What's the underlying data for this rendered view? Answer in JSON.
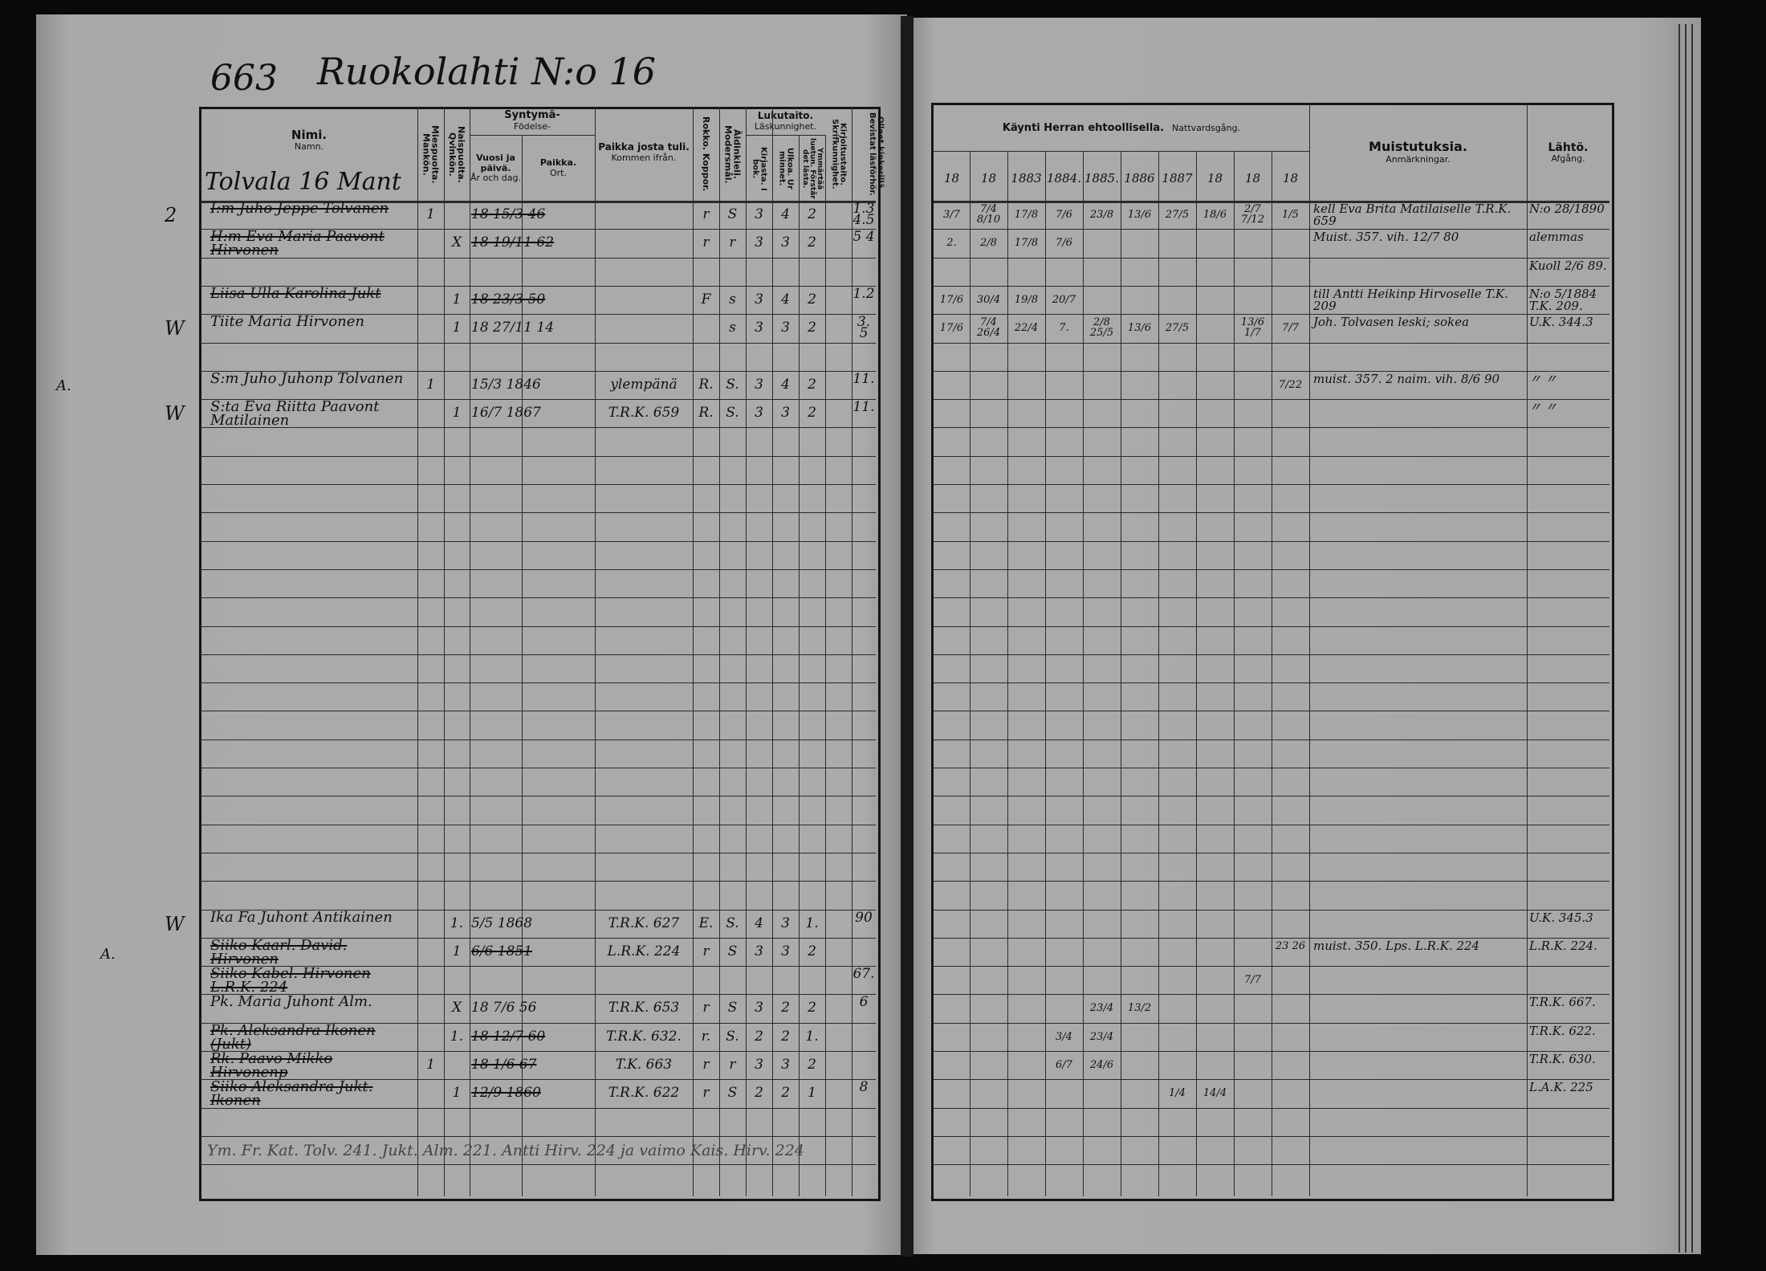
{
  "header": {
    "page_number": "663",
    "title": "Ruokolahti N:o 16",
    "household": "Tolvala 16 Mant"
  },
  "left_headers": {
    "name": "Nimi.",
    "name_sv": "Namn.",
    "male": "Miespuolta. Mankön.",
    "female": "Naispuolta. Qvinkön.",
    "birth_group": "Syntymä-",
    "birth_group_sv": "Födelse-",
    "birth": "Vuosi ja päivä.",
    "birth_sv": "År och dag.",
    "place": "Paikka.",
    "place_sv": "Ort.",
    "from": "Paikka josta tuli.",
    "from_sv": "Kommen ifrån.",
    "rokko": "Rokko. Koppor.",
    "language": "Äidinkieli. Modersmål.",
    "literacy_group": "Lukutaito.",
    "literacy_group_sv": "Läskunnighet.",
    "book": "Kirjasta. I bok.",
    "memory": "Ulkoa. Ur minnet.",
    "understand": "Ymmärtää luetun. Förstår det lästa.",
    "writing": "Kirjoitustaito. Skrifkunnighet.",
    "other": "Olleet kinkerillä. Bevistat läsförhör."
  },
  "right_headers": {
    "communion_group": "Käynti Herran ehtoollisella.",
    "communion_group_sv": "Nattvardsgång.",
    "years": [
      "18",
      "18",
      "1883",
      "1884.",
      "1885.",
      "1886",
      "1887",
      "18",
      "18",
      "18"
    ],
    "notes": "Muistutuksia.",
    "notes_sv": "Anmärkningar.",
    "departure": "Lähtö.",
    "departure_sv": "Afgång."
  },
  "rows": [
    {
      "margin": "2",
      "name": "I:m Juho Jeppe Tolvanen",
      "male": "1",
      "female": "",
      "birth": "18 15/3 46",
      "from": "",
      "rokko": "r",
      "language": "S",
      "book": "3",
      "memory": "4",
      "understand": "2",
      "writing": "",
      "other": "1.3 4.5",
      "communion": [
        "3/7",
        "7/4 8/10",
        "17/8",
        "7/6",
        "23/8",
        "13/6",
        "27/5",
        "18/6",
        "2/7 7/12",
        "1/5"
      ],
      "notes": "kell Eva Brita Matilaiselle T.R.K. 659",
      "departure": "N:o 28/1890",
      "struck": true
    },
    {
      "margin": "",
      "name": "H:m Eva Maria Paavont Hirvonen",
      "male": "",
      "female": "X",
      "birth": "18 19/11 62",
      "from": "",
      "rokko": "r",
      "language": "r",
      "book": "3",
      "memory": "3",
      "understand": "2",
      "writing": "",
      "other": "5 4",
      "communion": [
        "2.",
        "2/8",
        "17/8",
        "7/6",
        "",
        "",
        "",
        "",
        "",
        ""
      ],
      "notes": "Muist. 357. vih. 12/7 80",
      "departure": "alemmas",
      "struck": true
    },
    {
      "margin": "",
      "name": "",
      "male": "",
      "female": "",
      "birth": "",
      "from": "",
      "rokko": "",
      "language": "",
      "book": "",
      "memory": "",
      "understand": "",
      "writing": "",
      "other": "",
      "communion": [
        "",
        "",
        "",
        "",
        "",
        "",
        "",
        "",
        "",
        ""
      ],
      "notes": "",
      "departure": "Kuoll 2/6 89.",
      "struck": false
    },
    {
      "margin": "",
      "name": "Liisa Ulla Karolina Jukt",
      "male": "",
      "female": "1",
      "birth": "18 23/3 50",
      "from": "",
      "rokko": "F",
      "language": "s",
      "book": "3",
      "memory": "4",
      "understand": "2",
      "writing": "",
      "other": "1.2",
      "communion": [
        "17/6",
        "30/4",
        "19/8",
        "20/7",
        "",
        "",
        "",
        "",
        "",
        ""
      ],
      "notes": "till Antti Heikinp Hirvoselle T.K. 209",
      "departure": "N:o 5/1884 T.K. 209.",
      "struck": true
    },
    {
      "margin": "W",
      "name": "Tiite Maria Hirvonen",
      "male": "",
      "female": "1",
      "birth": "18 27/11 14",
      "from": "",
      "rokko": "",
      "language": "s",
      "book": "3",
      "memory": "3",
      "understand": "2",
      "writing": "",
      "other": "3. 5",
      "communion": [
        "17/6",
        "7/4 26/4",
        "22/4",
        "7.",
        "2/8 25/5",
        "13/6",
        "27/5",
        "",
        "13/6 1/7",
        "7/7"
      ],
      "notes": "Joh. Tolvasen leski; sokea",
      "departure": "U.K. 344.3",
      "struck": false
    },
    {
      "margin": "",
      "name": "S:m Juho Juhonp Tolvanen",
      "male": "1",
      "female": "",
      "birth": "15/3 1846",
      "from": "ylempänä",
      "rokko": "R.",
      "language": "S.",
      "book": "3",
      "memory": "4",
      "understand": "2",
      "writing": "",
      "other": "11.",
      "communion": [
        "",
        "",
        "",
        "",
        "",
        "",
        "",
        "",
        "",
        "7/22"
      ],
      "notes": "muist. 357. 2 naim. vih. 8/6 90",
      "departure": "〃  〃",
      "struck": false
    },
    {
      "margin": "W",
      "name": "S:ta Eva Riitta Paavont Matilainen",
      "male": "",
      "female": "1",
      "birth": "16/7 1867",
      "from": "T.R.K. 659",
      "rokko": "R.",
      "language": "S.",
      "book": "3",
      "memory": "3",
      "understand": "2",
      "writing": "",
      "other": "11.",
      "communion": [
        "",
        "",
        "",
        "",
        "",
        "",
        "",
        "",
        "",
        ""
      ],
      "notes": "",
      "departure": "〃  〃",
      "struck": false
    },
    {
      "margin": "W",
      "name": "Ika Fa Juhont Antikainen",
      "male": "",
      "female": "1.",
      "birth": "5/5 1868",
      "from": "T.R.K. 627",
      "rokko": "E.",
      "language": "S.",
      "book": "4",
      "memory": "3",
      "understand": "1.",
      "writing": "",
      "other": "90",
      "communion": [
        "",
        "",
        "",
        "",
        "",
        "",
        "",
        "",
        "",
        ""
      ],
      "notes": "",
      "departure": "U.K. 345.3",
      "struck": false
    },
    {
      "margin": "",
      "name": "Siiko Kaarl. David. Hirvonen",
      "male": "",
      "female": "1",
      "birth": "6/6 1851",
      "from": "L.R.K. 224",
      "rokko": "r",
      "language": "S",
      "book": "3",
      "memory": "3",
      "understand": "2",
      "writing": "",
      "other": "",
      "communion": [
        "",
        "",
        "",
        "",
        "",
        "",
        "",
        "",
        "",
        "23 26"
      ],
      "notes": "muist. 350. Lps. L.R.K. 224",
      "departure": "L.R.K. 224.",
      "struck": true
    },
    {
      "margin": "",
      "name": "Siiko Kabel. Hirvonen L.R.K. 224",
      "male": "",
      "female": "",
      "birth": "",
      "from": "",
      "rokko": "",
      "language": "",
      "book": "",
      "memory": "",
      "understand": "",
      "writing": "",
      "other": "67.",
      "communion": [
        "",
        "",
        "",
        "",
        "",
        "",
        "",
        "",
        "7/7",
        ""
      ],
      "notes": "",
      "departure": "",
      "struck": true
    },
    {
      "margin": "",
      "name": "Pk. Maria Juhont Alm.",
      "male": "",
      "female": "X",
      "birth": "18 7/6 56",
      "from": "T.R.K. 653",
      "rokko": "r",
      "language": "S",
      "book": "3",
      "memory": "2",
      "understand": "2",
      "writing": "",
      "other": "6",
      "communion": [
        "",
        "",
        "",
        "",
        "23/4",
        "13/2",
        "",
        "",
        "",
        ""
      ],
      "notes": "",
      "departure": "T.R.K. 667.",
      "struck": false
    },
    {
      "margin": "",
      "name": "Pk. Aleksandra Ikonen (Jukt)",
      "male": "",
      "female": "1.",
      "birth": "18 12/7 60",
      "from": "T.R.K. 632.",
      "rokko": "r.",
      "language": "S.",
      "book": "2",
      "memory": "2",
      "understand": "1.",
      "writing": "",
      "other": "",
      "communion": [
        "",
        "",
        "",
        "3/4",
        "23/4",
        "",
        "",
        "",
        "",
        ""
      ],
      "notes": "",
      "departure": "T.R.K. 622.",
      "struck": true
    },
    {
      "margin": "",
      "name": "Rk. Paavo Mikko Hirvonenp",
      "male": "1",
      "female": "",
      "birth": "18 1/6 67",
      "from": "T.K. 663",
      "rokko": "r",
      "language": "r",
      "book": "3",
      "memory": "3",
      "understand": "2",
      "writing": "",
      "other": "",
      "communion": [
        "",
        "",
        "",
        "6/7",
        "24/6",
        "",
        "",
        "",
        "",
        ""
      ],
      "notes": "",
      "departure": "T.R.K. 630.",
      "struck": true
    },
    {
      "margin": "",
      "name": "Siiko Aleksandra Jukt. Ikonen",
      "male": "",
      "female": "1",
      "birth": "12/9 1860",
      "from": "T.R.K. 622",
      "rokko": "r",
      "language": "S",
      "book": "2",
      "memory": "2",
      "understand": "1",
      "writing": "",
      "other": "8",
      "communion": [
        "",
        "",
        "",
        "",
        "",
        "",
        "1/4",
        "14/4",
        "",
        ""
      ],
      "notes": "",
      "departure": "L.A.K. 225",
      "struck": true
    }
  ],
  "footnote": "Ym. Fr. Kat. Tolv. 241.   Jukt. Alm. 221.   Antti Hirv. 224 ja vaimo Kais. Hirv. 224",
  "margin_marks": [
    "A.",
    "A."
  ],
  "colors": {
    "paper": "#a6a6a6",
    "ink": "#111111",
    "background": "#0a0a0a"
  }
}
